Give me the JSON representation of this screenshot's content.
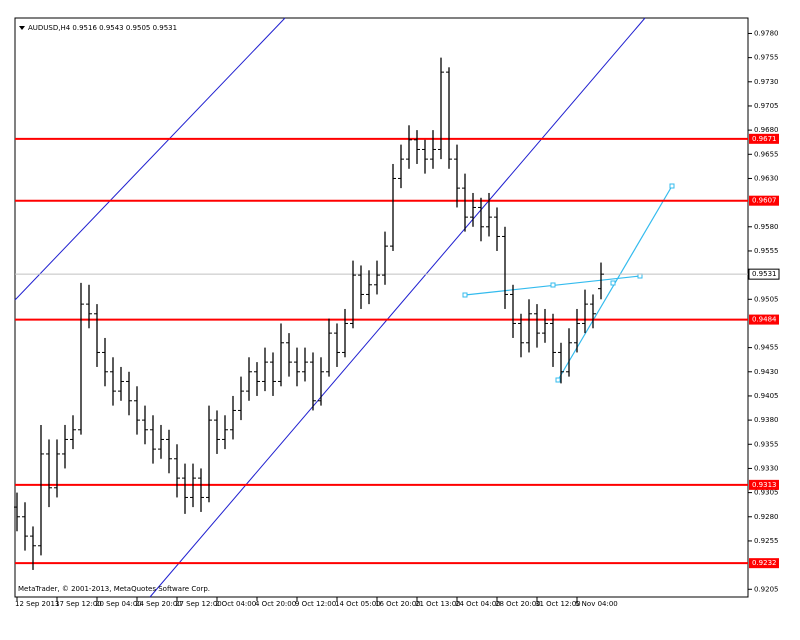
{
  "chart_data": {
    "type": "ohlc",
    "title": "AUDUSD,H4  0.9516 0.9543 0.9505 0.9531",
    "credit": "MetaTrader, © 2001-2013, MetaQuotes Software Corp.",
    "color": "#000000",
    "categories": [
      "12 Sep 2013",
      null,
      null,
      null,
      null,
      "17 Sep 12:00",
      null,
      null,
      null,
      null,
      "20 Sep 04:00",
      null,
      null,
      null,
      null,
      "24 Sep 20:00",
      null,
      null,
      null,
      null,
      "27 Sep 12:00",
      null,
      null,
      null,
      null,
      "2 Oct 04:00",
      null,
      null,
      null,
      null,
      "4 Oct 20:00",
      null,
      null,
      null,
      null,
      "9 Oct 12:00",
      null,
      null,
      null,
      null,
      "14 Oct 05:00",
      null,
      null,
      null,
      null,
      "16 Oct 20:00",
      null,
      null,
      null,
      null,
      "21 Oct 13:00",
      null,
      null,
      null,
      null,
      "24 Oct 04:00",
      null,
      null,
      null,
      null,
      "28 Oct 20:00",
      null,
      null,
      null,
      null,
      "31 Oct 12:00",
      null,
      null,
      null,
      null,
      "5 Nov 04:00",
      null,
      null,
      null
    ],
    "open": [
      0.929,
      0.928,
      0.926,
      0.925,
      0.9345,
      0.931,
      0.9345,
      0.936,
      0.937,
      0.95,
      0.949,
      0.945,
      0.943,
      0.941,
      0.942,
      0.94,
      0.938,
      0.937,
      0.935,
      0.936,
      0.934,
      0.932,
      0.93,
      0.932,
      0.93,
      0.938,
      0.936,
      0.937,
      0.939,
      0.941,
      0.943,
      0.942,
      0.944,
      0.942,
      0.946,
      0.944,
      0.943,
      0.944,
      0.94,
      0.943,
      0.947,
      0.945,
      0.948,
      0.953,
      0.951,
      0.952,
      0.953,
      0.956,
      0.963,
      0.965,
      0.967,
      0.966,
      0.965,
      0.966,
      0.974,
      0.965,
      0.962,
      0.959,
      0.96,
      0.958,
      0.959,
      0.957,
      0.951,
      0.948,
      0.946,
      0.949,
      0.947,
      0.948,
      0.945,
      0.943,
      0.946,
      0.948,
      0.95,
      0.9516
    ],
    "high": [
      0.9305,
      0.9295,
      0.927,
      0.9375,
      0.936,
      0.936,
      0.9375,
      0.9385,
      0.9522,
      0.952,
      0.95,
      0.9465,
      0.9445,
      0.9435,
      0.943,
      0.9415,
      0.9395,
      0.9385,
      0.9375,
      0.937,
      0.9355,
      0.9335,
      0.9335,
      0.933,
      0.9395,
      0.939,
      0.9385,
      0.9405,
      0.9425,
      0.9445,
      0.944,
      0.9455,
      0.945,
      0.948,
      0.947,
      0.9455,
      0.9455,
      0.945,
      0.9445,
      0.9485,
      0.948,
      0.9495,
      0.9545,
      0.954,
      0.9535,
      0.9545,
      0.9575,
      0.9645,
      0.9665,
      0.9685,
      0.968,
      0.967,
      0.968,
      0.9755,
      0.9745,
      0.9665,
      0.9635,
      0.9615,
      0.961,
      0.9615,
      0.96,
      0.958,
      0.952,
      0.949,
      0.9505,
      0.95,
      0.9495,
      0.949,
      0.946,
      0.9475,
      0.9495,
      0.9515,
      0.951,
      0.9543
    ],
    "low": [
      0.9265,
      0.9245,
      0.9225,
      0.924,
      0.929,
      0.93,
      0.933,
      0.935,
      0.9365,
      0.9475,
      0.9435,
      0.9415,
      0.9395,
      0.94,
      0.9385,
      0.9365,
      0.9355,
      0.9335,
      0.934,
      0.9325,
      0.93,
      0.9283,
      0.929,
      0.9285,
      0.9295,
      0.9345,
      0.935,
      0.936,
      0.938,
      0.94,
      0.9405,
      0.941,
      0.9405,
      0.9415,
      0.9425,
      0.9415,
      0.942,
      0.939,
      0.9395,
      0.9425,
      0.9435,
      0.9445,
      0.9475,
      0.9495,
      0.95,
      0.951,
      0.952,
      0.9555,
      0.962,
      0.964,
      0.9645,
      0.9635,
      0.964,
      0.965,
      0.964,
      0.96,
      0.9575,
      0.958,
      0.9565,
      0.957,
      0.9555,
      0.9495,
      0.9465,
      0.9445,
      0.945,
      0.9455,
      0.946,
      0.9435,
      0.9418,
      0.9425,
      0.945,
      0.947,
      0.9475,
      0.9505
    ],
    "close": [
      0.928,
      0.926,
      0.925,
      0.9345,
      0.931,
      0.9345,
      0.936,
      0.937,
      0.95,
      0.949,
      0.945,
      0.943,
      0.941,
      0.942,
      0.94,
      0.938,
      0.937,
      0.935,
      0.936,
      0.934,
      0.932,
      0.93,
      0.932,
      0.93,
      0.938,
      0.936,
      0.937,
      0.939,
      0.941,
      0.943,
      0.942,
      0.944,
      0.942,
      0.946,
      0.944,
      0.943,
      0.944,
      0.94,
      0.943,
      0.947,
      0.945,
      0.948,
      0.953,
      0.951,
      0.952,
      0.953,
      0.956,
      0.963,
      0.965,
      0.967,
      0.966,
      0.965,
      0.966,
      0.974,
      0.965,
      0.962,
      0.959,
      0.96,
      0.958,
      0.959,
      0.957,
      0.951,
      0.948,
      0.946,
      0.949,
      0.947,
      0.948,
      0.945,
      0.943,
      0.946,
      0.948,
      0.95,
      0.949,
      0.9531
    ],
    "levels": [
      {
        "value": 0.9671,
        "color": "#ff0000"
      },
      {
        "value": 0.9607,
        "color": "#ff0000"
      },
      {
        "value": 0.9484,
        "color": "#ff0000"
      },
      {
        "value": 0.9313,
        "color": "#ff0000"
      },
      {
        "value": 0.9232,
        "color": "#ff0000"
      }
    ],
    "current_price": 0.9531,
    "ylim": [
      0.9197,
      0.9796
    ],
    "yticks": [
      {
        "value": 0.978,
        "label": "0.9780"
      },
      {
        "value": 0.9755,
        "label": "0.9755"
      },
      {
        "value": 0.973,
        "label": "0.9730"
      },
      {
        "value": 0.9705,
        "label": "0.9705"
      },
      {
        "value": 0.968,
        "label": "0.9680"
      },
      {
        "value": 0.9655,
        "label": "0.9655"
      },
      {
        "value": 0.963,
        "label": "0.9630"
      },
      {
        "value": 0.958,
        "label": "0.9580"
      },
      {
        "value": 0.9555,
        "label": "0.9555"
      },
      {
        "value": 0.9505,
        "label": "0.9505"
      },
      {
        "value": 0.9455,
        "label": "0.9455"
      },
      {
        "value": 0.943,
        "label": "0.9430"
      },
      {
        "value": 0.9405,
        "label": "0.9405"
      },
      {
        "value": 0.938,
        "label": "0.9380"
      },
      {
        "value": 0.9355,
        "label": "0.9355"
      },
      {
        "value": 0.933,
        "label": "0.9330"
      },
      {
        "value": 0.9305,
        "label": "0.9305"
      },
      {
        "value": 0.928,
        "label": "0.9280"
      },
      {
        "value": 0.9255,
        "label": "0.9255"
      },
      {
        "value": 0.9205,
        "label": "0.9205"
      }
    ]
  }
}
